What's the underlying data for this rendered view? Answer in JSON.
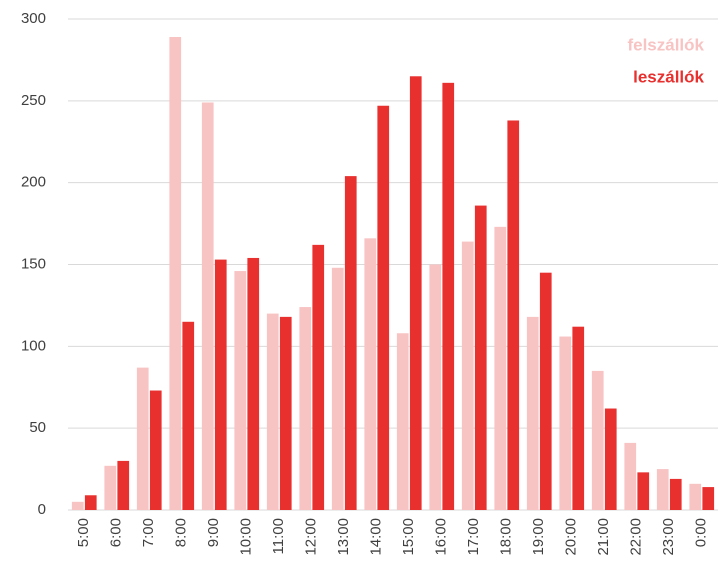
{
  "chart_data": {
    "type": "bar",
    "categories": [
      "5:00",
      "6:00",
      "7:00",
      "8:00",
      "9:00",
      "10:00",
      "11:00",
      "12:00",
      "13:00",
      "14:00",
      "15:00",
      "16:00",
      "17:00",
      "18:00",
      "19:00",
      "20:00",
      "21:00",
      "22:00",
      "23:00",
      "0:00"
    ],
    "series": [
      {
        "name": "felszállók",
        "color": "#f8c3c3",
        "values": [
          5,
          27,
          87,
          289,
          249,
          146,
          120,
          124,
          148,
          166,
          108,
          150,
          164,
          173,
          118,
          106,
          85,
          41,
          25,
          16
        ]
      },
      {
        "name": "leszállók",
        "color": "#e8302f",
        "values": [
          9,
          30,
          73,
          115,
          153,
          154,
          118,
          162,
          204,
          247,
          265,
          261,
          186,
          238,
          145,
          112,
          62,
          23,
          19,
          14
        ]
      }
    ],
    "ylim": [
      0,
      300
    ],
    "yticks": [
      0,
      50,
      100,
      150,
      200,
      250,
      300
    ],
    "grid": true,
    "legend": "top-right"
  }
}
